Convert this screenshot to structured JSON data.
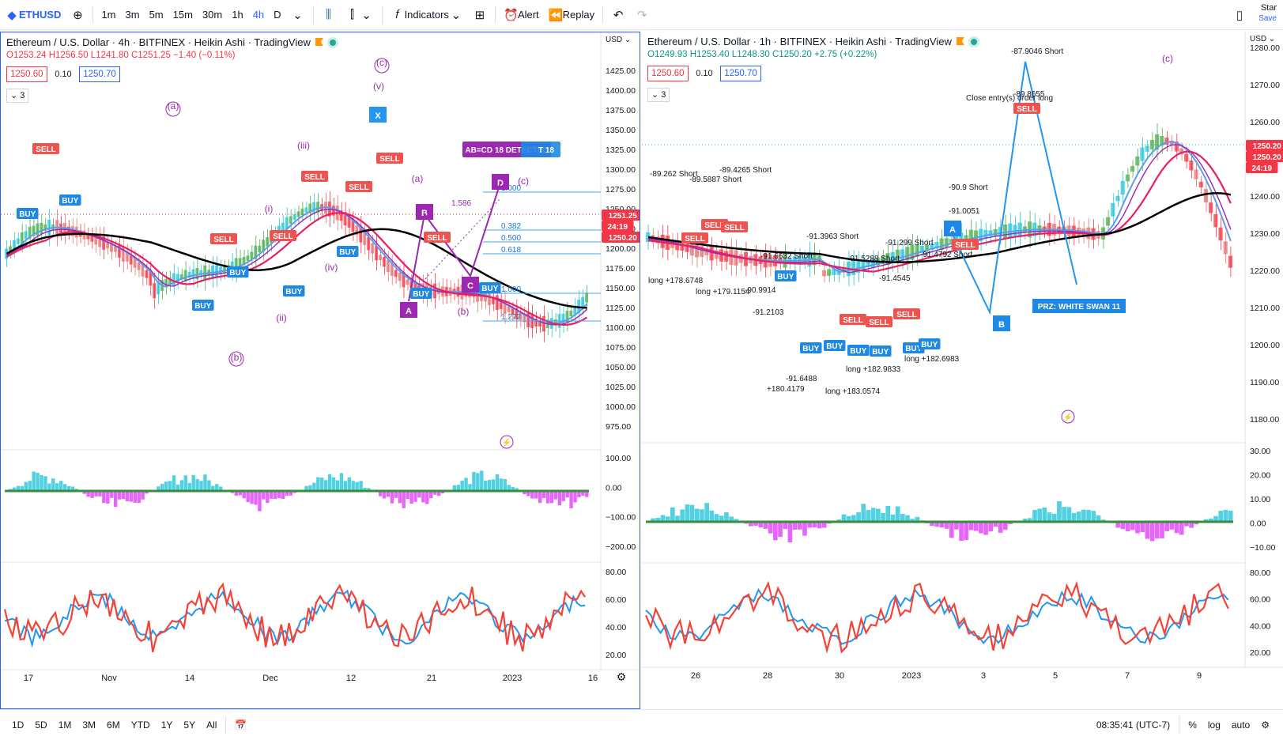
{
  "toolbar": {
    "symbol": "ETHUSD",
    "intervals": [
      "1m",
      "3m",
      "5m",
      "15m",
      "30m",
      "1h",
      "4h",
      "D"
    ],
    "active_interval": "4h",
    "indicators_label": "Indicators",
    "alert_label": "Alert",
    "replay_label": "Replay",
    "star_label": "Star",
    "save_label": "Save"
  },
  "left_chart": {
    "title": "Ethereum / U.S. Dollar · 4h · BITFINEX · Heikin Ashi · TradingView",
    "ohlc": {
      "o": "O1253.24",
      "h": "H1256.50",
      "l": "L1241.80",
      "c": "C1251.25",
      "chg": "−1.40 (−0.11%)"
    },
    "bid": "1250.60",
    "spread": "0.10",
    "ask": "1250.70",
    "collapsed_count": "3",
    "currency": "USD",
    "price_axis": [
      "1425.00",
      "1400.00",
      "1375.00",
      "1350.00",
      "1325.00",
      "1300.00",
      "1275.00",
      "1250.00",
      "1225.00",
      "1200.00",
      "1175.00",
      "1150.00",
      "1125.00",
      "1100.00",
      "1075.00",
      "1050.00",
      "1025.00",
      "1000.00",
      "975.00"
    ],
    "last_price": "1251.25",
    "countdown": "24:19",
    "second_price": "1250.20",
    "macd_axis": [
      "100.00",
      "0.00",
      "−100.00",
      "−200.00"
    ],
    "rsi_axis": [
      "80.00",
      "60.00",
      "40.00",
      "20.00"
    ],
    "time_axis": [
      "17",
      "Nov",
      "14",
      "Dec",
      "12",
      "21",
      "2023",
      "16"
    ],
    "wave_labels": [
      "(a)",
      "(iii)",
      "(i)",
      "(iv)",
      "(ii)",
      "(b)",
      "(v)",
      "(c)",
      "(a)",
      "(b)",
      "(c)"
    ],
    "fib_labels": [
      "1.000",
      "1.586",
      "0.382",
      "0.500",
      "0.618",
      "1.000",
      "1.272"
    ],
    "pattern_points": [
      "X",
      "A",
      "B",
      "C",
      "D"
    ],
    "abcd_label": "AB=CD 18 DETECTED",
    "abcd_label2": "T 18",
    "signal_buy": "BUY",
    "signal_sell": "SELL"
  },
  "right_chart": {
    "title": "Ethereum / U.S. Dollar · 1h · BITFINEX · Heikin Ashi · TradingView",
    "ohlc": {
      "o": "O1249.93",
      "h": "H1253.40",
      "l": "L1248.30",
      "c": "C1250.20",
      "chg": "+2.75 (+0.22%)"
    },
    "bid": "1250.60",
    "spread": "0.10",
    "ask": "1250.70",
    "collapsed_count": "3",
    "currency": "USD",
    "price_axis": [
      "1280.00",
      "1270.00",
      "1260.00",
      "1250.00",
      "1240.00",
      "1230.00",
      "1220.00",
      "1210.00",
      "1200.00",
      "1190.00",
      "1180.00"
    ],
    "last_price": "1250.20",
    "countdown": "24:19",
    "macd_axis": [
      "30.00",
      "20.00",
      "10.00",
      "0.00",
      "−10.00"
    ],
    "rsi_axis": [
      "80.00",
      "60.00",
      "40.00",
      "20.00"
    ],
    "time_axis": [
      "26",
      "28",
      "30",
      "2023",
      "3",
      "5",
      "7",
      "9"
    ],
    "wave_label": "(c)",
    "prz_label": "PRZ: WHITE SWAN 11",
    "pattern_points": [
      "A",
      "B"
    ],
    "trade_labels": [
      "-89.262 Short",
      "-89.5887 Short",
      "-89.4265 Short",
      "-91.6632 Short",
      "-91.3963 Short",
      "-91.5288 Short",
      "-91.299 Short",
      "-91.4792 Short",
      "-90.9 Short",
      "-87.9046 Short",
      "-89.8655",
      "Close entry(s) order long",
      "long +178.6748",
      "long +179.1154",
      "long +182.9833",
      "long +183.0574",
      "+180.4179",
      "-91.6488",
      "-90.9914",
      "-91.2103",
      "-91.4545",
      "-91.0051",
      "long +182.6983"
    ],
    "signal_buy": "BUY",
    "signal_sell": "SELL"
  },
  "bottom": {
    "ranges": [
      "1D",
      "5D",
      "1M",
      "3M",
      "6M",
      "YTD",
      "1Y",
      "5Y",
      "All"
    ],
    "clock": "08:35:41 (UTC-7)",
    "percent": "%",
    "log": "log",
    "auto": "auto"
  },
  "colors": {
    "accent": "#2962ff",
    "up": "#26c6da",
    "down": "#f23645",
    "purple": "#9c27b0"
  }
}
